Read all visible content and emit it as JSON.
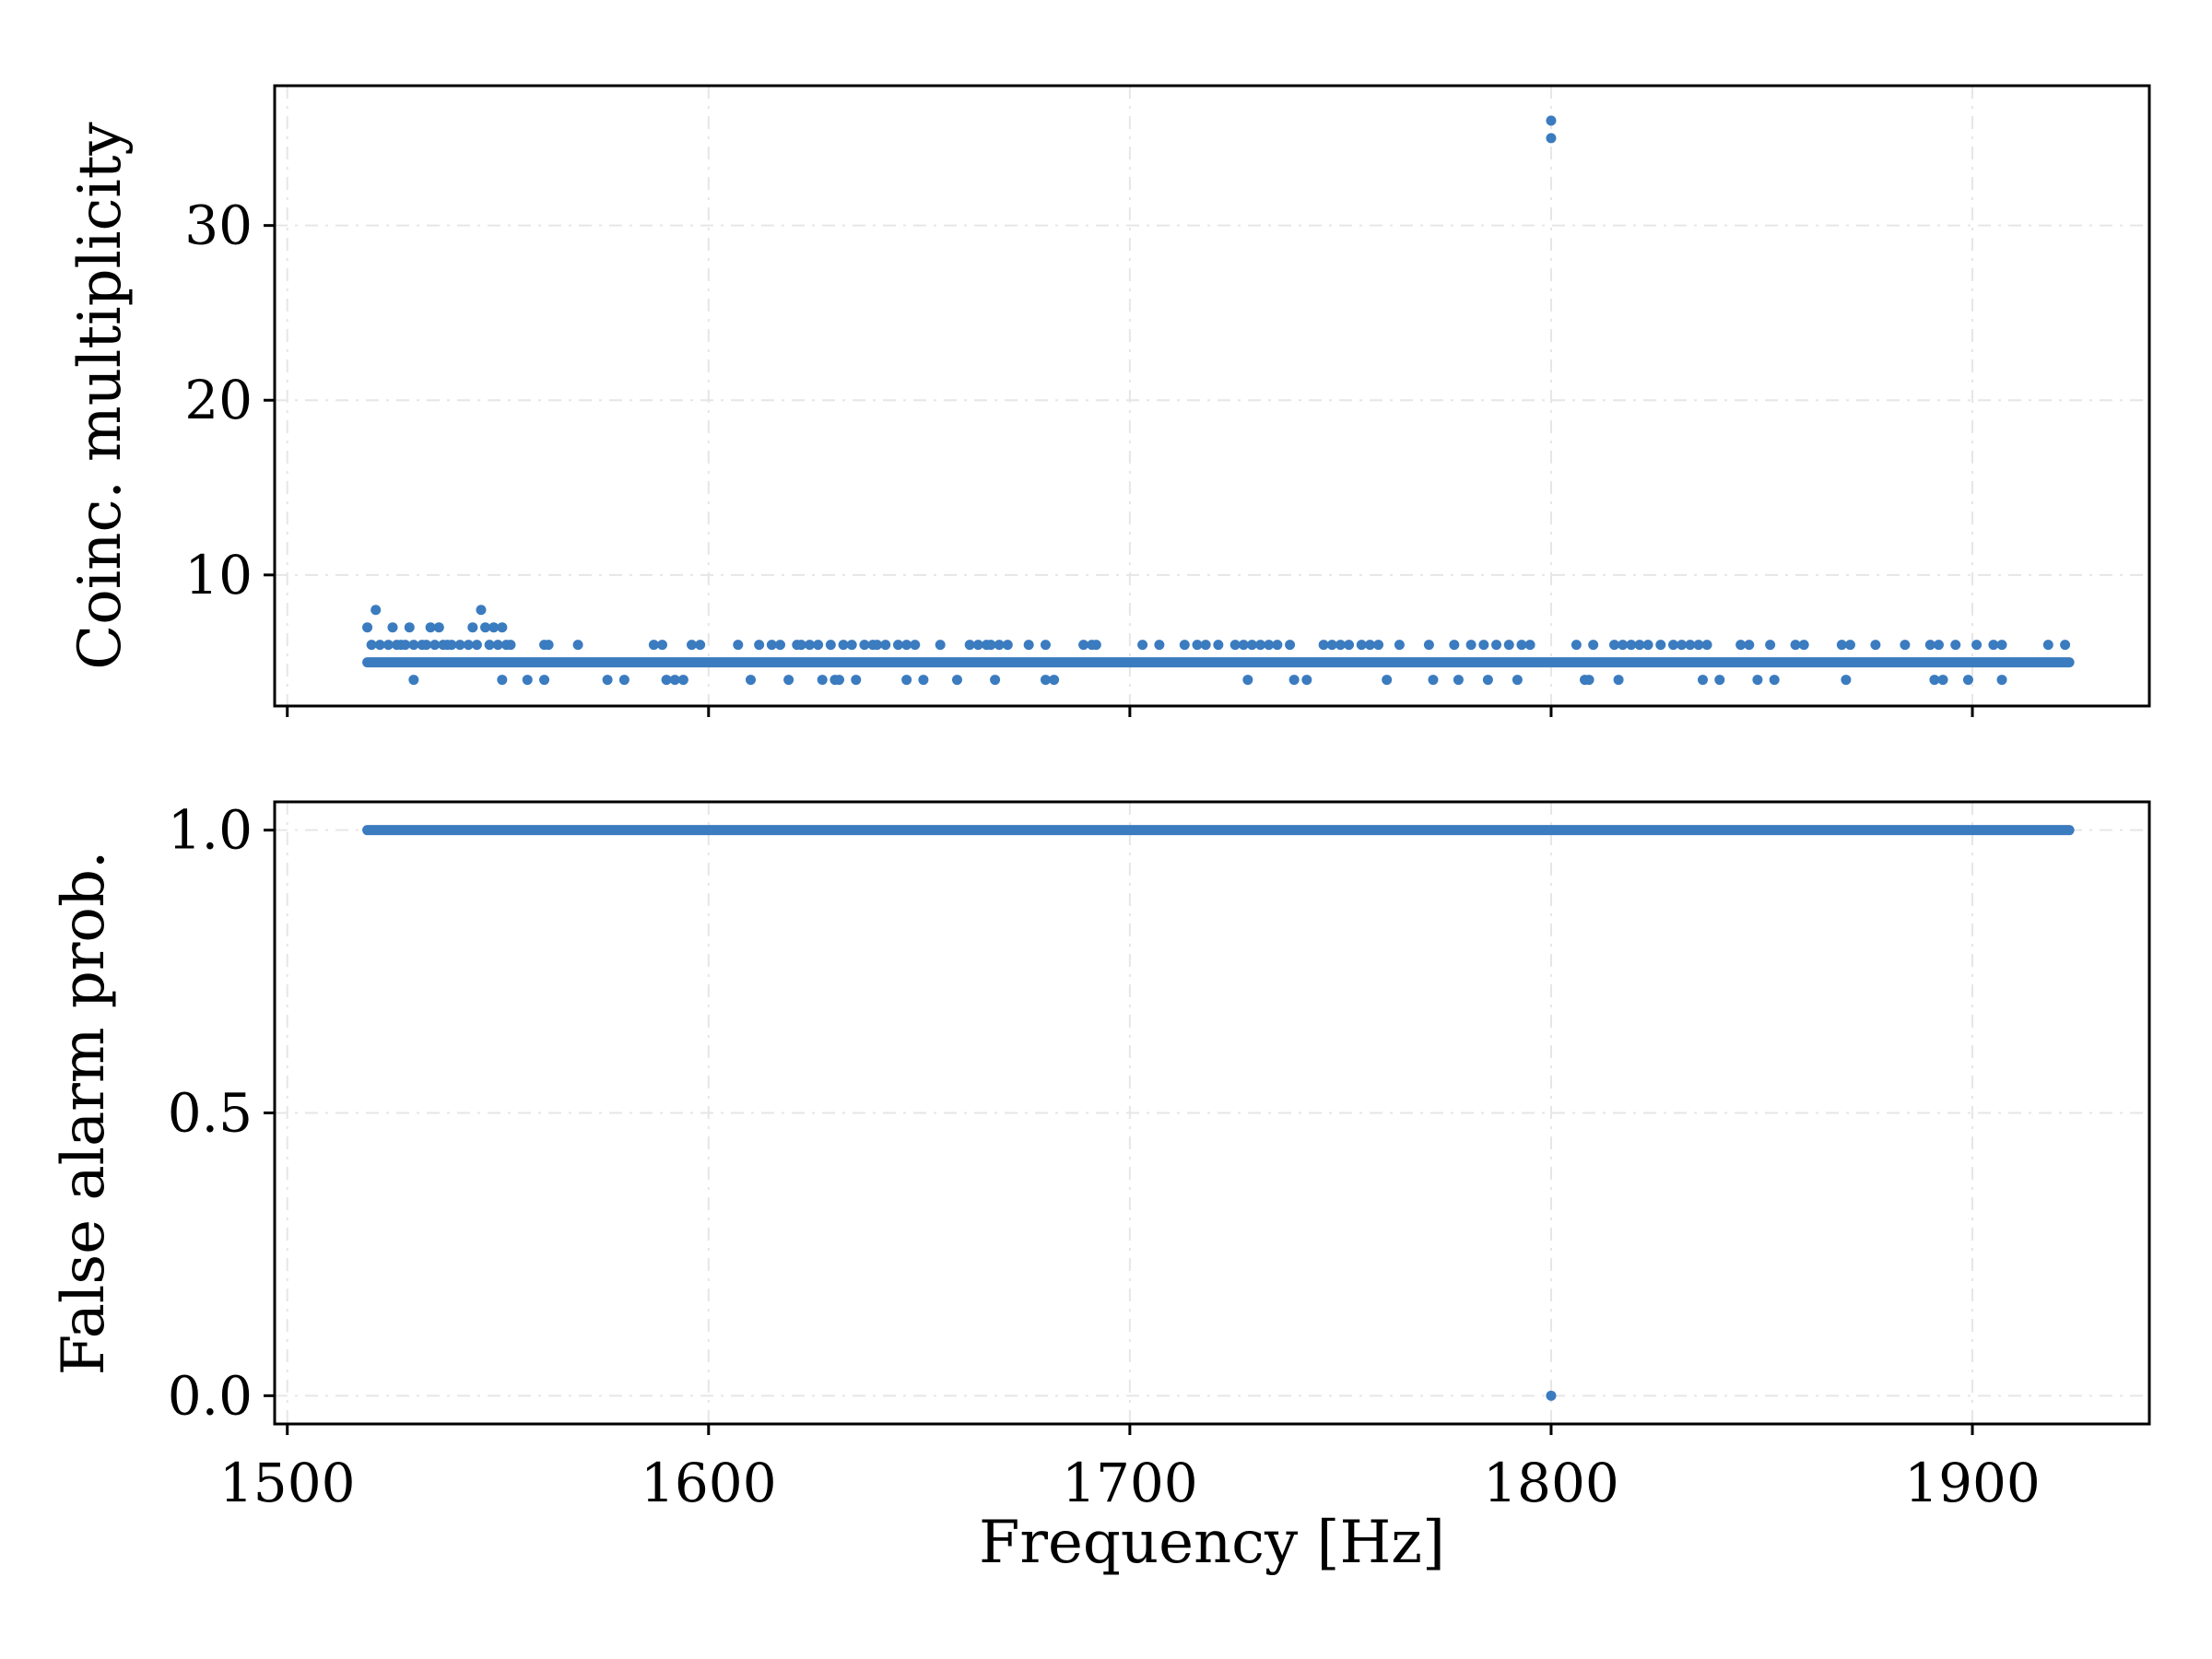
{
  "chart_data": [
    {
      "type": "scatter",
      "ylabel": "Coinc. multiplicity",
      "xlabel": "",
      "xlim": [
        1497,
        1942
      ],
      "ylim": [
        2.5,
        38.0
      ],
      "xticks": [
        1500,
        1600,
        1700,
        1800,
        1900
      ],
      "show_xtick_labels": false,
      "yticks": [
        10,
        20,
        30
      ],
      "ytick_labels": [
        "10",
        "20",
        "30"
      ],
      "grid": true,
      "marker_color": "#3b7bbf",
      "baseline": {
        "x_start": 1519,
        "x_end": 1923,
        "y": 5
      },
      "points": [
        [
          1519,
          7
        ],
        [
          1520,
          6
        ],
        [
          1521,
          8
        ],
        [
          1522,
          6
        ],
        [
          1524,
          6
        ],
        [
          1525,
          7
        ],
        [
          1526,
          6
        ],
        [
          1527,
          6
        ],
        [
          1528,
          6
        ],
        [
          1529,
          7
        ],
        [
          1530,
          4
        ],
        [
          1530,
          6
        ],
        [
          1532,
          6
        ],
        [
          1533,
          6
        ],
        [
          1534,
          7
        ],
        [
          1535,
          6
        ],
        [
          1536,
          7
        ],
        [
          1537,
          6
        ],
        [
          1538,
          6
        ],
        [
          1539,
          6
        ],
        [
          1541,
          6
        ],
        [
          1543,
          6
        ],
        [
          1544,
          7
        ],
        [
          1545,
          6
        ],
        [
          1546,
          8
        ],
        [
          1547,
          7
        ],
        [
          1548,
          6
        ],
        [
          1549,
          7
        ],
        [
          1550,
          6
        ],
        [
          1551,
          7
        ],
        [
          1551,
          4
        ],
        [
          1552,
          6
        ],
        [
          1553,
          6
        ],
        [
          1557,
          4
        ],
        [
          1561,
          6
        ],
        [
          1561,
          4
        ],
        [
          1562,
          6
        ],
        [
          1569,
          6
        ],
        [
          1576,
          4
        ],
        [
          1580,
          4
        ],
        [
          1587,
          6
        ],
        [
          1589,
          6
        ],
        [
          1590,
          4
        ],
        [
          1592,
          4
        ],
        [
          1594,
          4
        ],
        [
          1596,
          6
        ],
        [
          1598,
          6
        ],
        [
          1607,
          6
        ],
        [
          1610,
          4
        ],
        [
          1612,
          6
        ],
        [
          1615,
          6
        ],
        [
          1617,
          6
        ],
        [
          1619,
          4
        ],
        [
          1621,
          6
        ],
        [
          1622,
          6
        ],
        [
          1624,
          6
        ],
        [
          1626,
          6
        ],
        [
          1627,
          4
        ],
        [
          1629,
          6
        ],
        [
          1630,
          4
        ],
        [
          1631,
          4
        ],
        [
          1632,
          6
        ],
        [
          1634,
          6
        ],
        [
          1635,
          4
        ],
        [
          1637,
          6
        ],
        [
          1639,
          6
        ],
        [
          1640,
          6
        ],
        [
          1642,
          6
        ],
        [
          1645,
          6
        ],
        [
          1647,
          6
        ],
        [
          1647,
          4
        ],
        [
          1649,
          6
        ],
        [
          1651,
          4
        ],
        [
          1655,
          6
        ],
        [
          1659,
          4
        ],
        [
          1662,
          6
        ],
        [
          1664,
          6
        ],
        [
          1666,
          6
        ],
        [
          1667,
          6
        ],
        [
          1668,
          4
        ],
        [
          1669,
          6
        ],
        [
          1671,
          6
        ],
        [
          1676,
          6
        ],
        [
          1680,
          6
        ],
        [
          1680,
          4
        ],
        [
          1682,
          4
        ],
        [
          1689,
          6
        ],
        [
          1691,
          6
        ],
        [
          1692,
          6
        ],
        [
          1703,
          6
        ],
        [
          1707,
          6
        ],
        [
          1713,
          6
        ],
        [
          1716,
          6
        ],
        [
          1718,
          6
        ],
        [
          1721,
          6
        ],
        [
          1725,
          6
        ],
        [
          1727,
          6
        ],
        [
          1728,
          4
        ],
        [
          1729,
          6
        ],
        [
          1731,
          6
        ],
        [
          1733,
          6
        ],
        [
          1735,
          6
        ],
        [
          1738,
          6
        ],
        [
          1739,
          4
        ],
        [
          1742,
          4
        ],
        [
          1746,
          6
        ],
        [
          1748,
          6
        ],
        [
          1750,
          6
        ],
        [
          1752,
          6
        ],
        [
          1755,
          6
        ],
        [
          1757,
          6
        ],
        [
          1759,
          6
        ],
        [
          1761,
          4
        ],
        [
          1764,
          6
        ],
        [
          1771,
          6
        ],
        [
          1772,
          4
        ],
        [
          1777,
          6
        ],
        [
          1778,
          4
        ],
        [
          1781,
          6
        ],
        [
          1784,
          6
        ],
        [
          1785,
          4
        ],
        [
          1787,
          6
        ],
        [
          1790,
          6
        ],
        [
          1792,
          4
        ],
        [
          1793,
          6
        ],
        [
          1795,
          6
        ],
        [
          1800,
          36
        ],
        [
          1800,
          35
        ],
        [
          1806,
          6
        ],
        [
          1808,
          4
        ],
        [
          1809,
          4
        ],
        [
          1810,
          6
        ],
        [
          1815,
          6
        ],
        [
          1816,
          4
        ],
        [
          1817,
          6
        ],
        [
          1819,
          6
        ],
        [
          1821,
          6
        ],
        [
          1823,
          6
        ],
        [
          1826,
          6
        ],
        [
          1829,
          6
        ],
        [
          1831,
          6
        ],
        [
          1833,
          6
        ],
        [
          1835,
          6
        ],
        [
          1836,
          4
        ],
        [
          1837,
          6
        ],
        [
          1840,
          4
        ],
        [
          1845,
          6
        ],
        [
          1847,
          6
        ],
        [
          1849,
          4
        ],
        [
          1852,
          6
        ],
        [
          1853,
          4
        ],
        [
          1858,
          6
        ],
        [
          1860,
          6
        ],
        [
          1869,
          6
        ],
        [
          1870,
          4
        ],
        [
          1871,
          6
        ],
        [
          1877,
          6
        ],
        [
          1884,
          6
        ],
        [
          1890,
          6
        ],
        [
          1891,
          4
        ],
        [
          1892,
          6
        ],
        [
          1893,
          4
        ],
        [
          1896,
          6
        ],
        [
          1899,
          4
        ],
        [
          1901,
          6
        ],
        [
          1905,
          6
        ],
        [
          1907,
          4
        ],
        [
          1907,
          6
        ],
        [
          1918,
          6
        ],
        [
          1922,
          6
        ]
      ]
    },
    {
      "type": "scatter",
      "ylabel": "False alarm prob.",
      "xlabel": "Frequency [Hz]",
      "xlim": [
        1497,
        1942
      ],
      "ylim": [
        -0.05,
        1.05
      ],
      "xticks": [
        1500,
        1600,
        1700,
        1800,
        1900
      ],
      "xtick_labels": [
        "1500",
        "1600",
        "1700",
        "1800",
        "1900"
      ],
      "yticks": [
        0.0,
        0.5,
        1.0
      ],
      "ytick_labels": [
        "0.0",
        "0.5",
        "1.0"
      ],
      "grid": true,
      "marker_color": "#3b7bbf",
      "baseline": {
        "x_start": 1519,
        "x_end": 1923,
        "y": 1.0
      },
      "points": [
        [
          1800,
          0.0
        ]
      ]
    }
  ]
}
